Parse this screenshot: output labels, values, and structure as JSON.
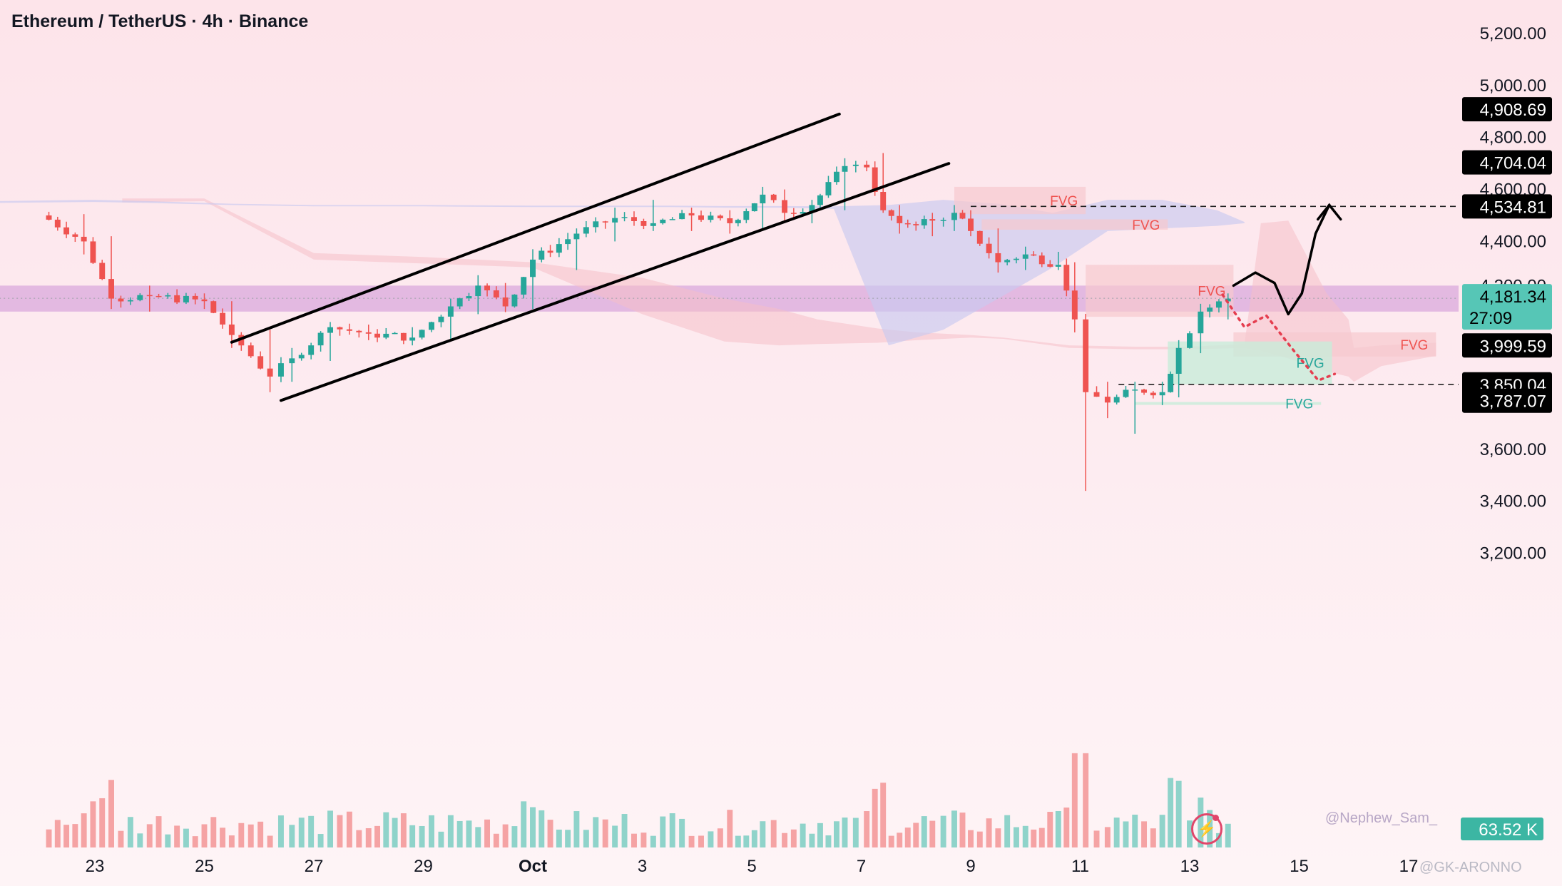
{
  "header": {
    "title": "Ethereum / TetherUS · 4h · Binance"
  },
  "watermark": "@Nephew_Sam_",
  "footer_mark": "@GK-ARONNO",
  "icons": {
    "logo": "lightning-bolt-icon"
  },
  "colors": {
    "up": "#26a69a",
    "down": "#ef5350",
    "price_band": "#d9a8dc",
    "demand": "#c8ecd9",
    "supply": "#f7c9cf",
    "cloud_purple": "#c9c9f0",
    "cloud_red": "#f6c0c8"
  },
  "chart_data": {
    "type": "candlestick",
    "title": "Ethereum / TetherUS · 4h · Binance",
    "ylim": [
      3000,
      5300
    ],
    "xlim": [
      -0.9,
      28.5
    ],
    "x_ticks": [
      {
        "d": 1,
        "label": "23"
      },
      {
        "d": 3,
        "label": "25"
      },
      {
        "d": 5,
        "label": "27"
      },
      {
        "d": 7,
        "label": "29"
      },
      {
        "d": 9,
        "label": "Oct"
      },
      {
        "d": 11,
        "label": "3"
      },
      {
        "d": 13,
        "label": "5"
      },
      {
        "d": 15,
        "label": "7"
      },
      {
        "d": 17,
        "label": "9"
      },
      {
        "d": 19,
        "label": "11"
      },
      {
        "d": 21,
        "label": "13"
      },
      {
        "d": 23,
        "label": "15"
      },
      {
        "d": 25,
        "label": "17"
      }
    ],
    "y_ticks": [
      {
        "v": 5200,
        "label": "5,200.00"
      },
      {
        "v": 5000,
        "label": "5,000.00"
      },
      {
        "v": 4800,
        "label": "4,800.00"
      },
      {
        "v": 4600,
        "label": "4,600.00"
      },
      {
        "v": 4400,
        "label": "4,400.00"
      },
      {
        "v": 3600,
        "label": "3,600.00"
      },
      {
        "v": 3400,
        "label": "3,400.00"
      },
      {
        "v": 3200,
        "label": "3,200.00"
      }
    ],
    "price_labels": [
      {
        "v": 4908.69,
        "label": "4,908.69"
      },
      {
        "v": 4704.04,
        "label": "4,704.04"
      },
      {
        "v": 4534.81,
        "label": "4,534.81"
      },
      {
        "v": 4181.34,
        "label": "4,181.34",
        "sub": "27:09",
        "highlight": true
      },
      {
        "v": 3999.59,
        "label": "3,999.59"
      },
      {
        "v": 3850.04,
        "label": "3,850.04"
      },
      {
        "v": 3787.07,
        "label": "3,787.07"
      }
    ],
    "volume_label": "63.52 K",
    "candle_anchors": [
      [
        0.0,
        4500,
        4510,
        4490,
        4505
      ],
      [
        0.8,
        4495,
        4505,
        4350,
        4400
      ],
      [
        1.3,
        4400,
        4420,
        4140,
        4180
      ],
      [
        2.0,
        4180,
        4230,
        4130,
        4190
      ],
      [
        3.0,
        4185,
        4200,
        4140,
        4170
      ],
      [
        3.5,
        4160,
        4170,
        3990,
        4040
      ],
      [
        4.2,
        4020,
        4060,
        3820,
        3880
      ],
      [
        4.6,
        3890,
        3990,
        3860,
        3950
      ],
      [
        5.3,
        3950,
        4090,
        3940,
        4070
      ],
      [
        6.0,
        4060,
        4080,
        4020,
        4045
      ],
      [
        6.8,
        4040,
        4070,
        4000,
        4030
      ],
      [
        7.5,
        4030,
        4180,
        4020,
        4150
      ],
      [
        8.0,
        4150,
        4270,
        4120,
        4230
      ],
      [
        8.5,
        4220,
        4240,
        4140,
        4150
      ],
      [
        9.0,
        4150,
        4370,
        4140,
        4330
      ],
      [
        9.8,
        4320,
        4450,
        4290,
        4430
      ],
      [
        10.5,
        4430,
        4530,
        4400,
        4490
      ],
      [
        11.2,
        4480,
        4560,
        4440,
        4470
      ],
      [
        11.9,
        4470,
        4530,
        4440,
        4500
      ],
      [
        12.6,
        4490,
        4520,
        4430,
        4470
      ],
      [
        13.2,
        4460,
        4610,
        4450,
        4580
      ],
      [
        13.6,
        4560,
        4600,
        4480,
        4510
      ],
      [
        14.1,
        4500,
        4560,
        4470,
        4540
      ],
      [
        14.7,
        4530,
        4720,
        4520,
        4690
      ],
      [
        15.1,
        4700,
        4710,
        4670,
        4685
      ],
      [
        15.4,
        4690,
        4740,
        4510,
        4520
      ],
      [
        15.7,
        4520,
        4540,
        4430,
        4470
      ],
      [
        16.3,
        4460,
        4510,
        4420,
        4480
      ],
      [
        16.7,
        4480,
        4540,
        4440,
        4510
      ],
      [
        17.0,
        4510,
        4520,
        4420,
        4440
      ],
      [
        17.5,
        4430,
        4450,
        4280,
        4320
      ],
      [
        18.0,
        4320,
        4380,
        4290,
        4350
      ],
      [
        18.6,
        4340,
        4360,
        4290,
        4310
      ],
      [
        18.9,
        4310,
        4320,
        4050,
        4100
      ],
      [
        19.1,
        4100,
        4120,
        3440,
        3820
      ],
      [
        19.5,
        3800,
        3860,
        3720,
        3780
      ],
      [
        20.0,
        3790,
        3860,
        3660,
        3830
      ],
      [
        20.5,
        3830,
        3860,
        3770,
        3820
      ],
      [
        20.8,
        3820,
        4020,
        3800,
        3990
      ],
      [
        21.2,
        3990,
        4160,
        3970,
        4130
      ],
      [
        21.7,
        4130,
        4200,
        4100,
        4180
      ]
    ],
    "channel": [
      {
        "x1": 3.5,
        "y1": 4012,
        "x2": 14.6,
        "y2": 4890
      },
      {
        "x1": 4.4,
        "y1": 3788,
        "x2": 16.6,
        "y2": 4700
      }
    ],
    "fvg_boxes": [
      {
        "x0": 16.7,
        "x1": 19.1,
        "y0": 4505,
        "y1": 4610,
        "type": "supply",
        "label": "FVG"
      },
      {
        "x0": 17.2,
        "x1": 20.6,
        "y0": 4445,
        "y1": 4485,
        "type": "supply",
        "label": "FVG"
      },
      {
        "x0": 19.1,
        "x1": 21.8,
        "y0": 4110,
        "y1": 4310,
        "type": "supply",
        "label": "FVG"
      },
      {
        "x0": 21.8,
        "x1": 25.5,
        "y0": 3957,
        "y1": 4050,
        "type": "supply",
        "label": "FVG"
      },
      {
        "x0": 20.6,
        "x1": 23.6,
        "y0": 3850,
        "y1": 4015,
        "type": "demand",
        "label": "FVG"
      },
      {
        "x0": 20.0,
        "x1": 23.4,
        "y0": 3772,
        "y1": 3782,
        "type": "demand",
        "label": "FVG"
      }
    ],
    "price_band": {
      "y0": 4130,
      "y1": 4230,
      "label": "4,200.00"
    },
    "hlines": [
      {
        "v": 4534.81,
        "x0": 17.0,
        "style": "dashed"
      },
      {
        "v": 3850.04,
        "x0": 19.7,
        "style": "dashed"
      },
      {
        "v": 4181.34,
        "x0": -0.9,
        "style": "dotted"
      }
    ],
    "cloud_purple": {
      "x": [
        -0.9,
        1.0,
        2.0,
        3.5,
        5.0,
        7.0,
        9.0,
        11.5,
        12.5,
        13.5,
        14.5,
        15.5,
        16.5,
        17.5,
        18.5,
        19.5,
        20.5,
        21.5,
        22.0
      ],
      "top": [
        4555,
        4560,
        4555,
        4545,
        4540,
        4540,
        4538,
        4538,
        4536,
        4536,
        4535,
        4540,
        4560,
        4545,
        4510,
        4560,
        4560,
        4520,
        4475
      ],
      "bot": [
        4548,
        4552,
        4548,
        4540,
        4535,
        4535,
        4532,
        4532,
        4530,
        4530,
        4525,
        4000,
        4060,
        4180,
        4300,
        4440,
        4450,
        4460,
        4470
      ]
    },
    "cloud_red": {
      "x": [
        1.5,
        3.0,
        5.0,
        7.0,
        9.0,
        11.0,
        12.5,
        13.5,
        14.2,
        15.3,
        16.0,
        17.0,
        17.6,
        18.8,
        20.0,
        21.0,
        22.0,
        22.3,
        22.8,
        23.5,
        23.9,
        24.0,
        24.5,
        25.5
      ],
      "top": [
        4565,
        4565,
        4355,
        4340,
        4320,
        4260,
        4180,
        4140,
        4100,
        4065,
        4050,
        4040,
        4030,
        4000,
        3995,
        3995,
        4005,
        4470,
        4480,
        4200,
        4100,
        3990,
        4000,
        4010
      ],
      "bot": [
        4550,
        4555,
        4330,
        4315,
        4300,
        4120,
        4015,
        4000,
        4005,
        4010,
        4020,
        4030,
        4025,
        3990,
        3985,
        3985,
        3990,
        3980,
        3950,
        3900,
        3880,
        3860,
        3920,
        3960
      ]
    },
    "projection_path": [
      [
        21.8,
        4230
      ],
      [
        22.2,
        4280
      ],
      [
        22.55,
        4240
      ],
      [
        22.8,
        4120
      ],
      [
        23.05,
        4200
      ],
      [
        23.3,
        4430
      ],
      [
        23.55,
        4540
      ]
    ],
    "red_zigzag": [
      [
        21.6,
        4195
      ],
      [
        22.0,
        4070
      ],
      [
        22.4,
        4115
      ],
      [
        22.9,
        3980
      ],
      [
        23.35,
        3865
      ],
      [
        23.65,
        3890
      ]
    ],
    "volume_ylim": [
      0,
      1400000
    ]
  }
}
